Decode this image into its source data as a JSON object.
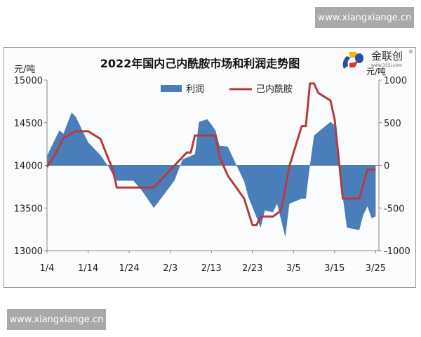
{
  "watermark": {
    "top": "www.xiangxiange.cn",
    "bottom": "www.xiangxiange.cn"
  },
  "logo": {
    "name": "金联创",
    "url": "www.315i.com",
    "registered": "®"
  },
  "colors": {
    "profit": "#4a7ebb",
    "price": "#b83b3b",
    "axis": "#888888"
  },
  "chart_data": {
    "type": "area+line",
    "title": "2022年国内己内酰胺市场和利润走势图",
    "y_left_label": "元/吨",
    "y_right_label": "元/吨",
    "y_left_range": [
      13000,
      15000
    ],
    "y_right_range": [
      -1000,
      1000
    ],
    "y_left_ticks": [
      "15000",
      "14500",
      "14000",
      "13500",
      "13000"
    ],
    "y_right_ticks": [
      "1000",
      "500",
      "0",
      "-500",
      "-1000"
    ],
    "x_ticks": [
      "1/4",
      "1/14",
      "1/24",
      "2/3",
      "2/13",
      "2/23",
      "3/5",
      "3/15",
      "3/25"
    ],
    "legend_position": "top",
    "grid": false,
    "series": [
      {
        "name": "利润",
        "type": "area",
        "axis": "right",
        "points": [
          [
            "1/4",
            110
          ],
          [
            "1/6",
            310
          ],
          [
            "1/7",
            410
          ],
          [
            "1/8",
            370
          ],
          [
            "1/10",
            620
          ],
          [
            "1/11",
            570
          ],
          [
            "1/14",
            270
          ],
          [
            "1/17",
            120
          ],
          [
            "1/19",
            -20
          ],
          [
            "1/20",
            -110
          ],
          [
            "1/21",
            -180
          ],
          [
            "1/25",
            -180
          ],
          [
            "1/27",
            -290
          ],
          [
            "1/30",
            -500
          ],
          [
            "2/4",
            -180
          ],
          [
            "2/6",
            70
          ],
          [
            "2/9",
            130
          ],
          [
            "2/10",
            510
          ],
          [
            "2/12",
            540
          ],
          [
            "2/13",
            480
          ],
          [
            "2/14",
            410
          ],
          [
            "2/15",
            230
          ],
          [
            "2/17",
            220
          ],
          [
            "2/21",
            -190
          ],
          [
            "2/22",
            -370
          ],
          [
            "2/25",
            -730
          ],
          [
            "2/26",
            -530
          ],
          [
            "2/28",
            -550
          ],
          [
            "3/1",
            -450
          ],
          [
            "3/3",
            -840
          ],
          [
            "3/4",
            -450
          ],
          [
            "3/7",
            -390
          ],
          [
            "3/8",
            -390
          ],
          [
            "3/9",
            0
          ],
          [
            "3/10",
            350
          ],
          [
            "3/14",
            510
          ],
          [
            "3/15",
            470
          ],
          [
            "3/16",
            -20
          ],
          [
            "3/18",
            -730
          ],
          [
            "3/21",
            -760
          ],
          [
            "3/22",
            -580
          ],
          [
            "3/23",
            -480
          ],
          [
            "3/24",
            -620
          ],
          [
            "3/25",
            -600
          ]
        ]
      },
      {
        "name": "己内酰胺",
        "type": "line",
        "axis": "left",
        "points": [
          [
            "1/4",
            13980
          ],
          [
            "1/6",
            14130
          ],
          [
            "1/8",
            14320
          ],
          [
            "1/11",
            14400
          ],
          [
            "1/14",
            14400
          ],
          [
            "1/17",
            14310
          ],
          [
            "1/20",
            13950
          ],
          [
            "1/21",
            13740
          ],
          [
            "1/30",
            13740
          ],
          [
            "2/7",
            14150
          ],
          [
            "2/8",
            14150
          ],
          [
            "2/9",
            14350
          ],
          [
            "2/14",
            14350
          ],
          [
            "2/15",
            14100
          ],
          [
            "2/17",
            13880
          ],
          [
            "2/21",
            13610
          ],
          [
            "2/23",
            13300
          ],
          [
            "2/24",
            13300
          ],
          [
            "2/25",
            13400
          ],
          [
            "2/28",
            13400
          ],
          [
            "3/2",
            13470
          ],
          [
            "3/4",
            13990
          ],
          [
            "3/7",
            14460
          ],
          [
            "3/8",
            14460
          ],
          [
            "3/9",
            14960
          ],
          [
            "3/10",
            14960
          ],
          [
            "3/11",
            14850
          ],
          [
            "3/14",
            14760
          ],
          [
            "3/15",
            14540
          ],
          [
            "3/17",
            13610
          ],
          [
            "3/21",
            13610
          ],
          [
            "3/23",
            13950
          ],
          [
            "3/25",
            13950
          ]
        ]
      }
    ]
  }
}
